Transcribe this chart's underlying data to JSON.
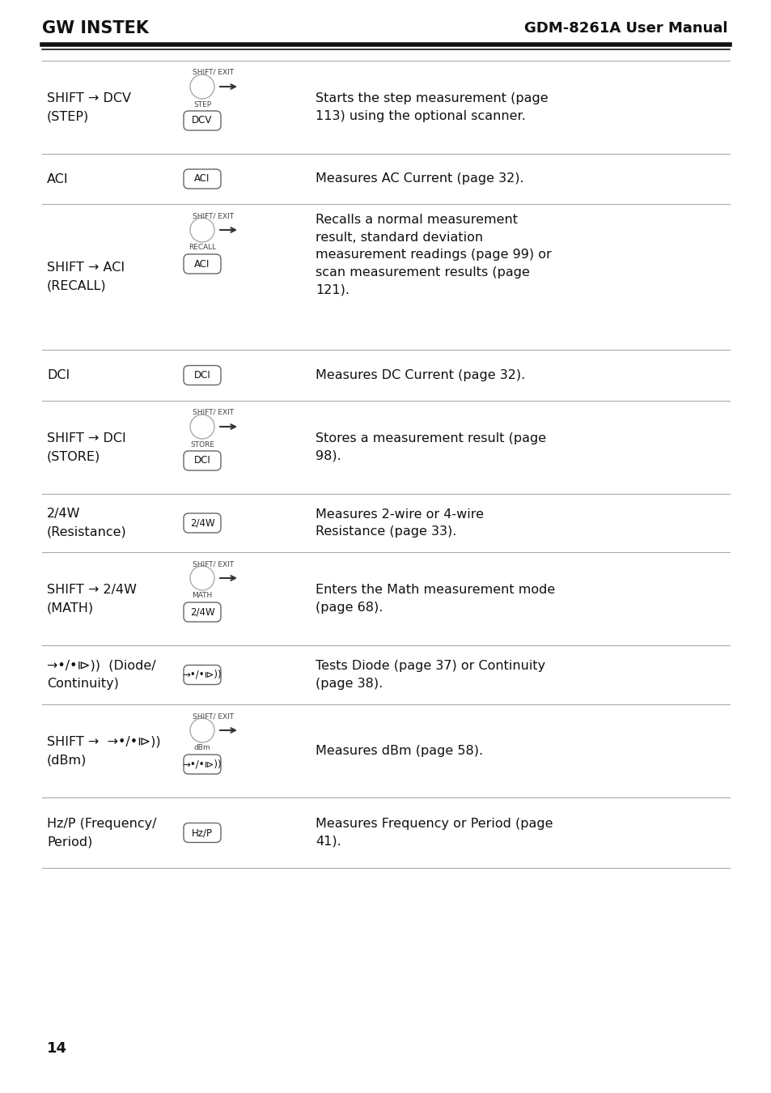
{
  "bg_color": "#ffffff",
  "header_logo": "GW INSTEK",
  "header_title": "GDM-8261A User Manual",
  "page_number": "14",
  "rows": [
    {
      "key_label": "SHIFT → DCV\n(STEP)",
      "has_shift": true,
      "shift_label": "SHIFT/ EXIT",
      "button_label": "DCV",
      "sub_label": "STEP",
      "has_arrow": true,
      "description": "Starts the step measurement (page\n113) using the optional scanner."
    },
    {
      "key_label": "ACI",
      "has_shift": false,
      "shift_label": "",
      "button_label": "ACI",
      "sub_label": "",
      "has_arrow": false,
      "description": "Measures AC Current (page 32)."
    },
    {
      "key_label": "SHIFT → ACI\n(RECALL)",
      "has_shift": true,
      "shift_label": "SHIFT/ EXIT",
      "button_label": "ACI",
      "sub_label": "RECALL",
      "has_arrow": true,
      "description": "Recalls a normal measurement\nresult, standard deviation\nmeasurement readings (page 99) or\nscan measurement results (page\n121)."
    },
    {
      "key_label": "DCI",
      "has_shift": false,
      "shift_label": "",
      "button_label": "DCI",
      "sub_label": "",
      "has_arrow": false,
      "description": "Measures DC Current (page 32)."
    },
    {
      "key_label": "SHIFT → DCI\n(STORE)",
      "has_shift": true,
      "shift_label": "SHIFT/ EXIT",
      "button_label": "DCI",
      "sub_label": "STORE",
      "has_arrow": true,
      "description": "Stores a measurement result (page\n98)."
    },
    {
      "key_label": "2/4W\n(Resistance)",
      "has_shift": false,
      "shift_label": "",
      "button_label": "2/4W",
      "sub_label": "",
      "has_arrow": false,
      "description": "Measures 2-wire or 4-wire\nResistance (page 33)."
    },
    {
      "key_label": "SHIFT → 2/4W\n(MATH)",
      "has_shift": true,
      "shift_label": "SHIFT/ EXIT",
      "button_label": "2/4W",
      "sub_label": "MATH",
      "has_arrow": true,
      "description": "Enters the Math measurement mode\n(page 68)."
    },
    {
      "key_label": "→•/•⧐))  (Diode/\nContinuity)",
      "has_shift": false,
      "shift_label": "",
      "button_label": "→•/•⧐))",
      "sub_label": "",
      "has_arrow": false,
      "description": "Tests Diode (page 37) or Continuity\n(page 38)."
    },
    {
      "key_label": "SHIFT →  →•/•⧐))\n(dBm)",
      "has_shift": true,
      "shift_label": "SHIFT/ EXIT",
      "button_label": "→•/•⧐))",
      "sub_label": "dBm",
      "has_arrow": true,
      "description": "Measures dBm (page 58)."
    },
    {
      "key_label": "Hz/P (Frequency/\nPeriod)",
      "has_shift": false,
      "shift_label": "",
      "button_label": "Hz/P",
      "sub_label": "",
      "has_arrow": false,
      "description": "Measures Frequency or Period (page\n41)."
    }
  ]
}
